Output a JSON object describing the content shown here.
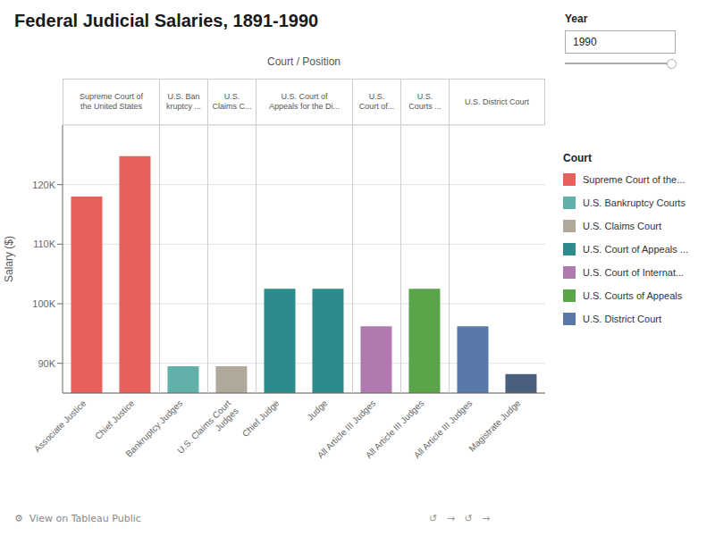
{
  "chart_data": {
    "type": "bar",
    "title": "Federal Judicial Salaries, 1891-1990",
    "xlabel": "Court / Position",
    "ylabel": "Salary ($)",
    "categories": [
      "Associate Justice",
      "Chief Justice",
      "Bankruptcy Judges",
      "U.S. Claims Court\nJudges",
      "Chief Judge",
      "Judge",
      "All Article III Judges",
      "All Article III Judges",
      "All Article III Judges",
      "Magistrate Judge"
    ],
    "values": [
      118000,
      124800,
      89500,
      89500,
      102500,
      102500,
      96200,
      102500,
      96200,
      88200
    ],
    "colors": [
      "#e8605a",
      "#e8605a",
      "#62b0aa",
      "#b0a89a",
      "#2e8b8b",
      "#2e8b8b",
      "#b07ab0",
      "#5aa44a",
      "#5878a8",
      "#4a5f7e"
    ],
    "ylim": [
      85000,
      130000
    ],
    "yticks": [
      {
        "value": 90000,
        "label": "90K"
      },
      {
        "value": 100000,
        "label": "100K"
      },
      {
        "value": 110000,
        "label": "110K"
      },
      {
        "value": 120000,
        "label": "120K"
      }
    ],
    "grid": true,
    "groups": [
      {
        "label": "Supreme Court of\nthe United States",
        "start": 0,
        "end": 1
      },
      {
        "label": "U.S. Ban\nkruptcy ...",
        "start": 2,
        "end": 2
      },
      {
        "label": "U.S.\nClaims C...",
        "start": 3,
        "end": 3
      },
      {
        "label": "U.S. Court of\nAppeals for the Di...",
        "start": 4,
        "end": 5
      },
      {
        "label": "U.S.\nCourt of...",
        "start": 6,
        "end": 6
      },
      {
        "label": "U.S.\nCourts ...",
        "start": 7,
        "end": 7
      },
      {
        "label": "U.S. District Court",
        "start": 8,
        "end": 9
      }
    ],
    "legend": "right",
    "legend_title": "Court",
    "legend_entries": [
      {
        "label": "Supreme Court of the...",
        "color": "#e8605a"
      },
      {
        "label": "U.S. Bankruptcy Courts",
        "color": "#62b0aa"
      },
      {
        "label": "U.S. Claims Court",
        "color": "#b0a89a"
      },
      {
        "label": "U.S. Court of Appeals ...",
        "color": "#2e8b8b"
      },
      {
        "label": "U.S. Court of Internat...",
        "color": "#b07ab0"
      },
      {
        "label": "U.S. Courts of Appeals",
        "color": "#5aa44a"
      },
      {
        "label": "U.S. District Court",
        "color": "#5878a8"
      }
    ],
    "annotations": [
      "Year",
      "1990",
      "⚙  View on Tableau Public",
      "↺   →   ↺   →"
    ]
  }
}
